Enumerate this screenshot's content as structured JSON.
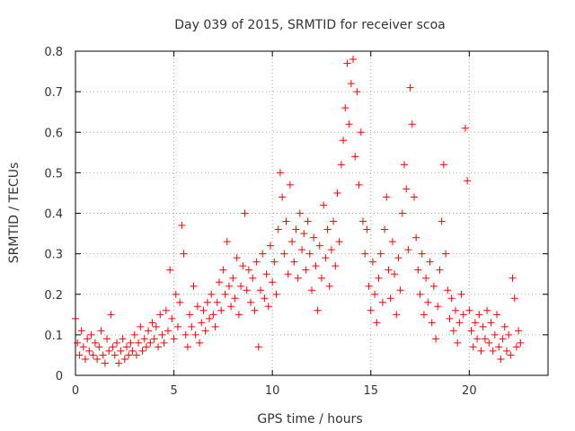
{
  "chart_data": {
    "type": "scatter",
    "title": "Day 039 of 2015, SRMTID for receiver scoa",
    "xlabel": "GPS time / hours",
    "ylabel": "SRMTID / TECUs",
    "xlim": [
      0,
      24
    ],
    "ylim": [
      0,
      0.8
    ],
    "xticks": [
      0,
      5,
      10,
      15,
      20
    ],
    "xtick_labels": [
      "0",
      "5",
      "10",
      "15",
      "20"
    ],
    "yticks": [
      0,
      0.1,
      0.2,
      0.3,
      0.4,
      0.5,
      0.6,
      0.7,
      0.8
    ],
    "ytick_labels": [
      "0",
      "0.1",
      "0.2",
      "0.3",
      "0.4",
      "0.5",
      "0.6",
      "0.7",
      "0.8"
    ],
    "grid": true,
    "marker": "+",
    "color": "#ff0000",
    "series": [
      {
        "name": "SRMTID",
        "points": [
          [
            0.0,
            0.14
          ],
          [
            0.1,
            0.08
          ],
          [
            0.2,
            0.05
          ],
          [
            0.3,
            0.11
          ],
          [
            0.4,
            0.07
          ],
          [
            0.5,
            0.04
          ],
          [
            0.6,
            0.09
          ],
          [
            0.7,
            0.06
          ],
          [
            0.8,
            0.1
          ],
          [
            0.9,
            0.05
          ],
          [
            1.0,
            0.08
          ],
          [
            1.1,
            0.04
          ],
          [
            1.2,
            0.07
          ],
          [
            1.3,
            0.11
          ],
          [
            1.4,
            0.05
          ],
          [
            1.5,
            0.03
          ],
          [
            1.6,
            0.09
          ],
          [
            1.7,
            0.06
          ],
          [
            1.8,
            0.15
          ],
          [
            1.9,
            0.07
          ],
          [
            2.0,
            0.05
          ],
          [
            2.1,
            0.08
          ],
          [
            2.2,
            0.03
          ],
          [
            2.3,
            0.06
          ],
          [
            2.4,
            0.09
          ],
          [
            2.5,
            0.04
          ],
          [
            2.6,
            0.07
          ],
          [
            2.7,
            0.05
          ],
          [
            2.8,
            0.08
          ],
          [
            2.9,
            0.06
          ],
          [
            3.0,
            0.1
          ],
          [
            3.1,
            0.05
          ],
          [
            3.2,
            0.08
          ],
          [
            3.3,
            0.12
          ],
          [
            3.4,
            0.06
          ],
          [
            3.5,
            0.09
          ],
          [
            3.6,
            0.07
          ],
          [
            3.7,
            0.11
          ],
          [
            3.8,
            0.08
          ],
          [
            3.9,
            0.13
          ],
          [
            4.0,
            0.09
          ],
          [
            4.1,
            0.12
          ],
          [
            4.2,
            0.07
          ],
          [
            4.3,
            0.15
          ],
          [
            4.4,
            0.1
          ],
          [
            4.5,
            0.08
          ],
          [
            4.6,
            0.16
          ],
          [
            4.7,
            0.11
          ],
          [
            4.8,
            0.26
          ],
          [
            4.9,
            0.14
          ],
          [
            5.0,
            0.09
          ],
          [
            5.1,
            0.2
          ],
          [
            5.2,
            0.12
          ],
          [
            5.3,
            0.18
          ],
          [
            5.4,
            0.37
          ],
          [
            5.5,
            0.3
          ],
          [
            5.6,
            0.1
          ],
          [
            5.7,
            0.07
          ],
          [
            5.8,
            0.15
          ],
          [
            5.9,
            0.12
          ],
          [
            6.0,
            0.22
          ],
          [
            6.1,
            0.1
          ],
          [
            6.2,
            0.17
          ],
          [
            6.3,
            0.08
          ],
          [
            6.4,
            0.13
          ],
          [
            6.5,
            0.16
          ],
          [
            6.6,
            0.11
          ],
          [
            6.7,
            0.18
          ],
          [
            6.8,
            0.14
          ],
          [
            6.9,
            0.2
          ],
          [
            7.0,
            0.15
          ],
          [
            7.1,
            0.12
          ],
          [
            7.2,
            0.18
          ],
          [
            7.3,
            0.23
          ],
          [
            7.4,
            0.16
          ],
          [
            7.5,
            0.26
          ],
          [
            7.6,
            0.2
          ],
          [
            7.7,
            0.33
          ],
          [
            7.8,
            0.22
          ],
          [
            7.9,
            0.17
          ],
          [
            8.0,
            0.24
          ],
          [
            8.1,
            0.19
          ],
          [
            8.2,
            0.29
          ],
          [
            8.3,
            0.15
          ],
          [
            8.4,
            0.22
          ],
          [
            8.5,
            0.27
          ],
          [
            8.6,
            0.4
          ],
          [
            8.7,
            0.21
          ],
          [
            8.8,
            0.26
          ],
          [
            8.9,
            0.18
          ],
          [
            9.0,
            0.24
          ],
          [
            9.1,
            0.16
          ],
          [
            9.2,
            0.28
          ],
          [
            9.3,
            0.07
          ],
          [
            9.4,
            0.21
          ],
          [
            9.5,
            0.3
          ],
          [
            9.6,
            0.19
          ],
          [
            9.7,
            0.25
          ],
          [
            9.8,
            0.17
          ],
          [
            9.9,
            0.32
          ],
          [
            10.0,
            0.23
          ],
          [
            10.1,
            0.28
          ],
          [
            10.2,
            0.2
          ],
          [
            10.3,
            0.36
          ],
          [
            10.4,
            0.5
          ],
          [
            10.5,
            0.44
          ],
          [
            10.6,
            0.3
          ],
          [
            10.7,
            0.38
          ],
          [
            10.8,
            0.25
          ],
          [
            10.9,
            0.47
          ],
          [
            11.0,
            0.33
          ],
          [
            11.1,
            0.28
          ],
          [
            11.2,
            0.36
          ],
          [
            11.3,
            0.24
          ],
          [
            11.4,
            0.4
          ],
          [
            11.5,
            0.31
          ],
          [
            11.6,
            0.35
          ],
          [
            11.7,
            0.26
          ],
          [
            11.8,
            0.38
          ],
          [
            11.9,
            0.3
          ],
          [
            12.0,
            0.21
          ],
          [
            12.1,
            0.34
          ],
          [
            12.2,
            0.27
          ],
          [
            12.3,
            0.16
          ],
          [
            12.4,
            0.32
          ],
          [
            12.5,
            0.24
          ],
          [
            12.6,
            0.42
          ],
          [
            12.7,
            0.29
          ],
          [
            12.8,
            0.36
          ],
          [
            12.9,
            0.22
          ],
          [
            13.0,
            0.31
          ],
          [
            13.1,
            0.38
          ],
          [
            13.2,
            0.27
          ],
          [
            13.3,
            0.45
          ],
          [
            13.4,
            0.33
          ],
          [
            13.5,
            0.52
          ],
          [
            13.6,
            0.58
          ],
          [
            13.7,
            0.66
          ],
          [
            13.8,
            0.77
          ],
          [
            13.9,
            0.62
          ],
          [
            14.0,
            0.72
          ],
          [
            14.1,
            0.78
          ],
          [
            14.2,
            0.54
          ],
          [
            14.3,
            0.7
          ],
          [
            14.4,
            0.47
          ],
          [
            14.5,
            0.6
          ],
          [
            14.6,
            0.38
          ],
          [
            14.7,
            0.3
          ],
          [
            14.8,
            0.36
          ],
          [
            14.9,
            0.22
          ],
          [
            15.0,
            0.16
          ],
          [
            15.1,
            0.28
          ],
          [
            15.2,
            0.2
          ],
          [
            15.3,
            0.13
          ],
          [
            15.4,
            0.24
          ],
          [
            15.5,
            0.3
          ],
          [
            15.6,
            0.18
          ],
          [
            15.7,
            0.36
          ],
          [
            15.8,
            0.44
          ],
          [
            15.9,
            0.26
          ],
          [
            16.0,
            0.19
          ],
          [
            16.1,
            0.33
          ],
          [
            16.2,
            0.25
          ],
          [
            16.3,
            0.15
          ],
          [
            16.4,
            0.29
          ],
          [
            16.5,
            0.21
          ],
          [
            16.6,
            0.4
          ],
          [
            16.7,
            0.52
          ],
          [
            16.8,
            0.46
          ],
          [
            16.9,
            0.31
          ],
          [
            17.0,
            0.71
          ],
          [
            17.1,
            0.62
          ],
          [
            17.2,
            0.44
          ],
          [
            17.3,
            0.34
          ],
          [
            17.4,
            0.26
          ],
          [
            17.5,
            0.2
          ],
          [
            17.6,
            0.3
          ],
          [
            17.7,
            0.15
          ],
          [
            17.8,
            0.24
          ],
          [
            17.9,
            0.18
          ],
          [
            18.0,
            0.28
          ],
          [
            18.1,
            0.13
          ],
          [
            18.2,
            0.22
          ],
          [
            18.3,
            0.09
          ],
          [
            18.4,
            0.17
          ],
          [
            18.5,
            0.26
          ],
          [
            18.6,
            0.38
          ],
          [
            18.7,
            0.52
          ],
          [
            18.8,
            0.3
          ],
          [
            18.9,
            0.21
          ],
          [
            19.0,
            0.14
          ],
          [
            19.1,
            0.19
          ],
          [
            19.2,
            0.11
          ],
          [
            19.3,
            0.16
          ],
          [
            19.4,
            0.08
          ],
          [
            19.5,
            0.13
          ],
          [
            19.6,
            0.2
          ],
          [
            19.7,
            0.15
          ],
          [
            19.8,
            0.61
          ],
          [
            19.9,
            0.48
          ],
          [
            20.0,
            0.16
          ],
          [
            20.1,
            0.11
          ],
          [
            20.2,
            0.07
          ],
          [
            20.3,
            0.13
          ],
          [
            20.4,
            0.09
          ],
          [
            20.5,
            0.15
          ],
          [
            20.6,
            0.06
          ],
          [
            20.7,
            0.12
          ],
          [
            20.8,
            0.09
          ],
          [
            20.9,
            0.16
          ],
          [
            21.0,
            0.08
          ],
          [
            21.1,
            0.13
          ],
          [
            21.2,
            0.06
          ],
          [
            21.3,
            0.1
          ],
          [
            21.4,
            0.15
          ],
          [
            21.5,
            0.07
          ],
          [
            21.6,
            0.04
          ],
          [
            21.7,
            0.09
          ],
          [
            21.8,
            0.12
          ],
          [
            21.9,
            0.06
          ],
          [
            22.0,
            0.1
          ],
          [
            22.1,
            0.05
          ],
          [
            22.2,
            0.24
          ],
          [
            22.3,
            0.19
          ],
          [
            22.4,
            0.07
          ],
          [
            22.5,
            0.11
          ],
          [
            22.6,
            0.08
          ]
        ]
      }
    ]
  }
}
